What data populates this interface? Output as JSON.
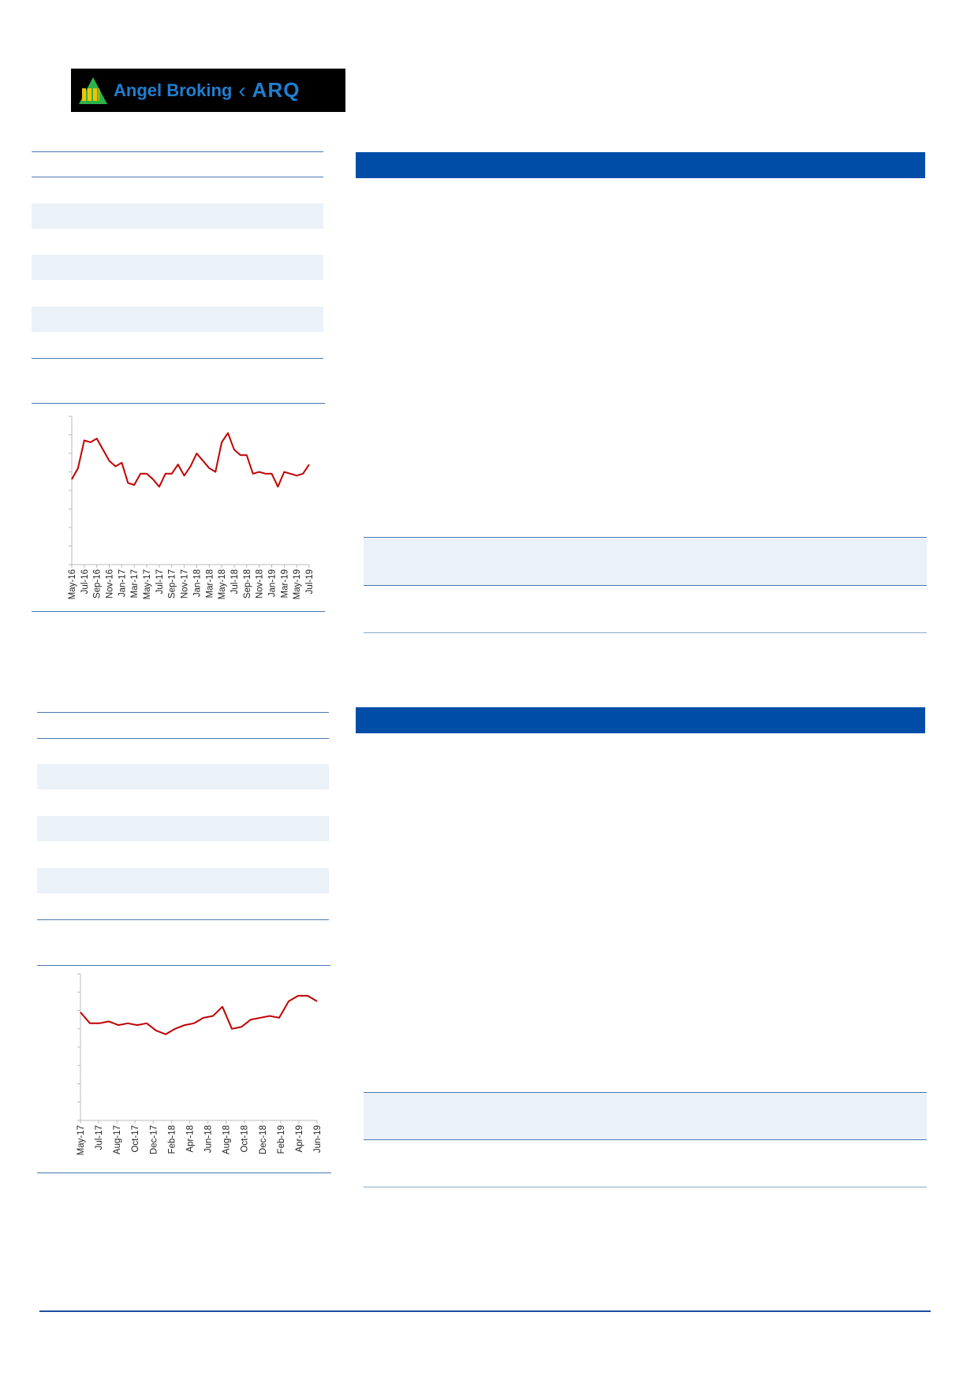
{
  "logo": {
    "text": "Angel Broking",
    "secondary": "ARQ"
  },
  "colors": {
    "header_bar": "#004DA8",
    "line": "#C00000",
    "row_shade": "#EAF1F8",
    "rule": "#4A78B0"
  },
  "chart_data": [
    {
      "type": "line",
      "title": "",
      "xlabel": "",
      "ylabel": "",
      "y_scale_note": "values read in gridline units (no y tick labels printed)",
      "ylim": [
        0,
        8
      ],
      "x_tick_labels": [
        "May-16",
        "Jul-16",
        "Sep-16",
        "Nov-16",
        "Jan-17",
        "Mar-17",
        "May-17",
        "Jul-17",
        "Sep-17",
        "Nov-17",
        "Jan-18",
        "Mar-18",
        "May-18",
        "Jul-18",
        "Sep-18",
        "Nov-18",
        "Jan-19",
        "Mar-19",
        "May-19",
        "Jul-19"
      ],
      "x": [
        "May-16",
        "Jun-16",
        "Jul-16",
        "Aug-16",
        "Sep-16",
        "Oct-16",
        "Nov-16",
        "Dec-16",
        "Jan-17",
        "Feb-17",
        "Mar-17",
        "Apr-17",
        "May-17",
        "Jun-17",
        "Jul-17",
        "Aug-17",
        "Sep-17",
        "Oct-17",
        "Nov-17",
        "Dec-17",
        "Jan-18",
        "Feb-18",
        "Mar-18",
        "Apr-18",
        "May-18",
        "Jun-18",
        "Jul-18",
        "Aug-18",
        "Sep-18",
        "Oct-18",
        "Nov-18",
        "Dec-18",
        "Jan-19",
        "Feb-19",
        "Mar-19",
        "Apr-19",
        "May-19",
        "Jun-19",
        "Jul-19"
      ],
      "values": [
        4.6,
        5.2,
        6.7,
        6.6,
        6.8,
        6.2,
        5.6,
        5.3,
        5.5,
        4.4,
        4.3,
        4.9,
        4.9,
        4.6,
        4.2,
        4.9,
        4.9,
        5.4,
        4.8,
        5.3,
        6.0,
        5.6,
        5.2,
        5.0,
        6.6,
        7.1,
        6.2,
        5.9,
        5.9,
        4.9,
        5.0,
        4.9,
        4.9,
        4.2,
        5.0,
        4.9,
        4.8,
        4.9,
        5.4
      ],
      "grid": false
    },
    {
      "type": "line",
      "title": "",
      "xlabel": "",
      "ylabel": "",
      "y_scale_note": "values read in gridline units (no y tick labels printed)",
      "ylim": [
        0,
        8
      ],
      "x_tick_labels": [
        "May-17",
        "Jul-17",
        "Aug-17",
        "Oct-17",
        "Dec-17",
        "Feb-18",
        "Apr-18",
        "Jun-18",
        "Aug-18",
        "Oct-18",
        "Dec-18",
        "Feb-19",
        "Apr-19",
        "Jun-19"
      ],
      "x": [
        "May-17",
        "Jun-17",
        "Jul-17",
        "Aug-17",
        "Sep-17",
        "Oct-17",
        "Nov-17",
        "Dec-17",
        "Jan-18",
        "Feb-18",
        "Mar-18",
        "Apr-18",
        "May-18",
        "Jun-18",
        "Jul-18",
        "Aug-18",
        "Sep-18",
        "Oct-18",
        "Nov-18",
        "Dec-18",
        "Jan-19",
        "Feb-19",
        "Mar-19",
        "Apr-19",
        "May-19",
        "Jun-19"
      ],
      "values": [
        5.9,
        5.3,
        5.3,
        5.4,
        5.2,
        5.3,
        5.2,
        5.3,
        4.9,
        4.7,
        5.0,
        5.2,
        5.3,
        5.6,
        5.7,
        6.2,
        5.0,
        5.1,
        5.5,
        5.6,
        5.7,
        5.6,
        6.5,
        6.8,
        6.8,
        6.5
      ],
      "grid": false
    }
  ]
}
